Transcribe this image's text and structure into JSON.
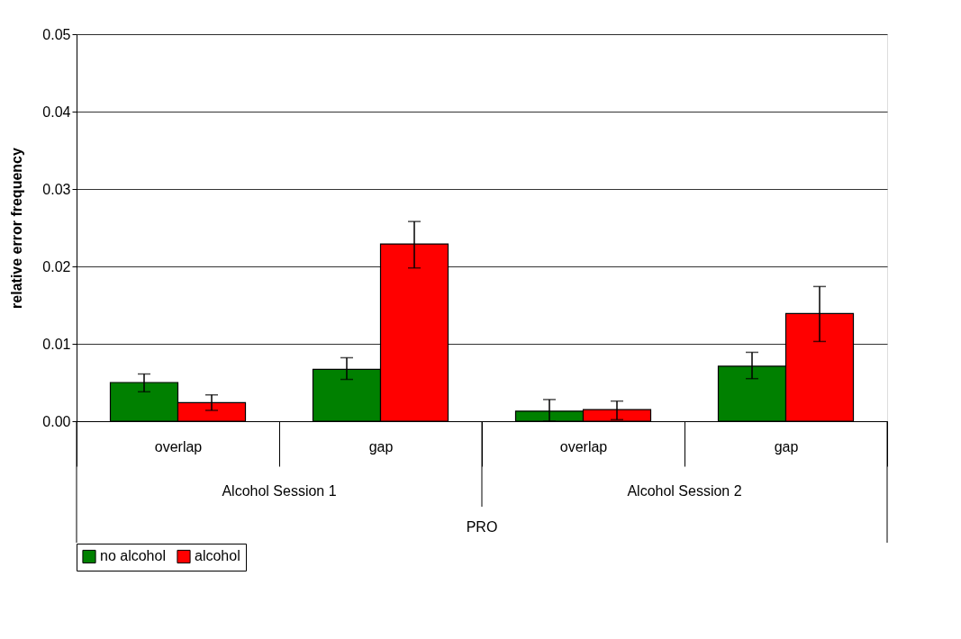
{
  "chart_data": {
    "type": "bar",
    "ylabel": "relative error frequency",
    "categories": [
      "overlap",
      "gap",
      "overlap",
      "gap"
    ],
    "series": [
      {
        "name": "no alcohol",
        "color": "#008000",
        "values": [
          0.005,
          0.0067,
          0.0013,
          0.0071
        ],
        "errors": [
          [
            0.0038,
            0.0061
          ],
          [
            0.0054,
            0.0082
          ],
          [
            0.0,
            0.0028
          ],
          [
            0.0055,
            0.0089
          ]
        ]
      },
      {
        "name": "alcohol",
        "color": "#ff0000",
        "values": [
          0.0024,
          0.0229,
          0.0015,
          0.0139
        ],
        "errors": [
          [
            0.0014,
            0.0034
          ],
          [
            0.0198,
            0.0258
          ],
          [
            0.0002,
            0.0026
          ],
          [
            0.0103,
            0.0174
          ]
        ]
      }
    ],
    "annotations": [
      "Alcohol Session 1",
      "Alcohol Session 2",
      "PRO"
    ],
    "ylim": [
      0,
      0.05
    ],
    "yticks": [
      {
        "value": 0,
        "label": "0.00"
      },
      {
        "value": 0.01,
        "label": "0.01"
      },
      {
        "value": 0.02,
        "label": "0.02"
      },
      {
        "value": 0.03,
        "label": "0.03"
      },
      {
        "value": 0.04,
        "label": "0.04"
      },
      {
        "value": 0.05,
        "label": "0.05"
      }
    ],
    "grid": "y",
    "legend": "bottom"
  }
}
